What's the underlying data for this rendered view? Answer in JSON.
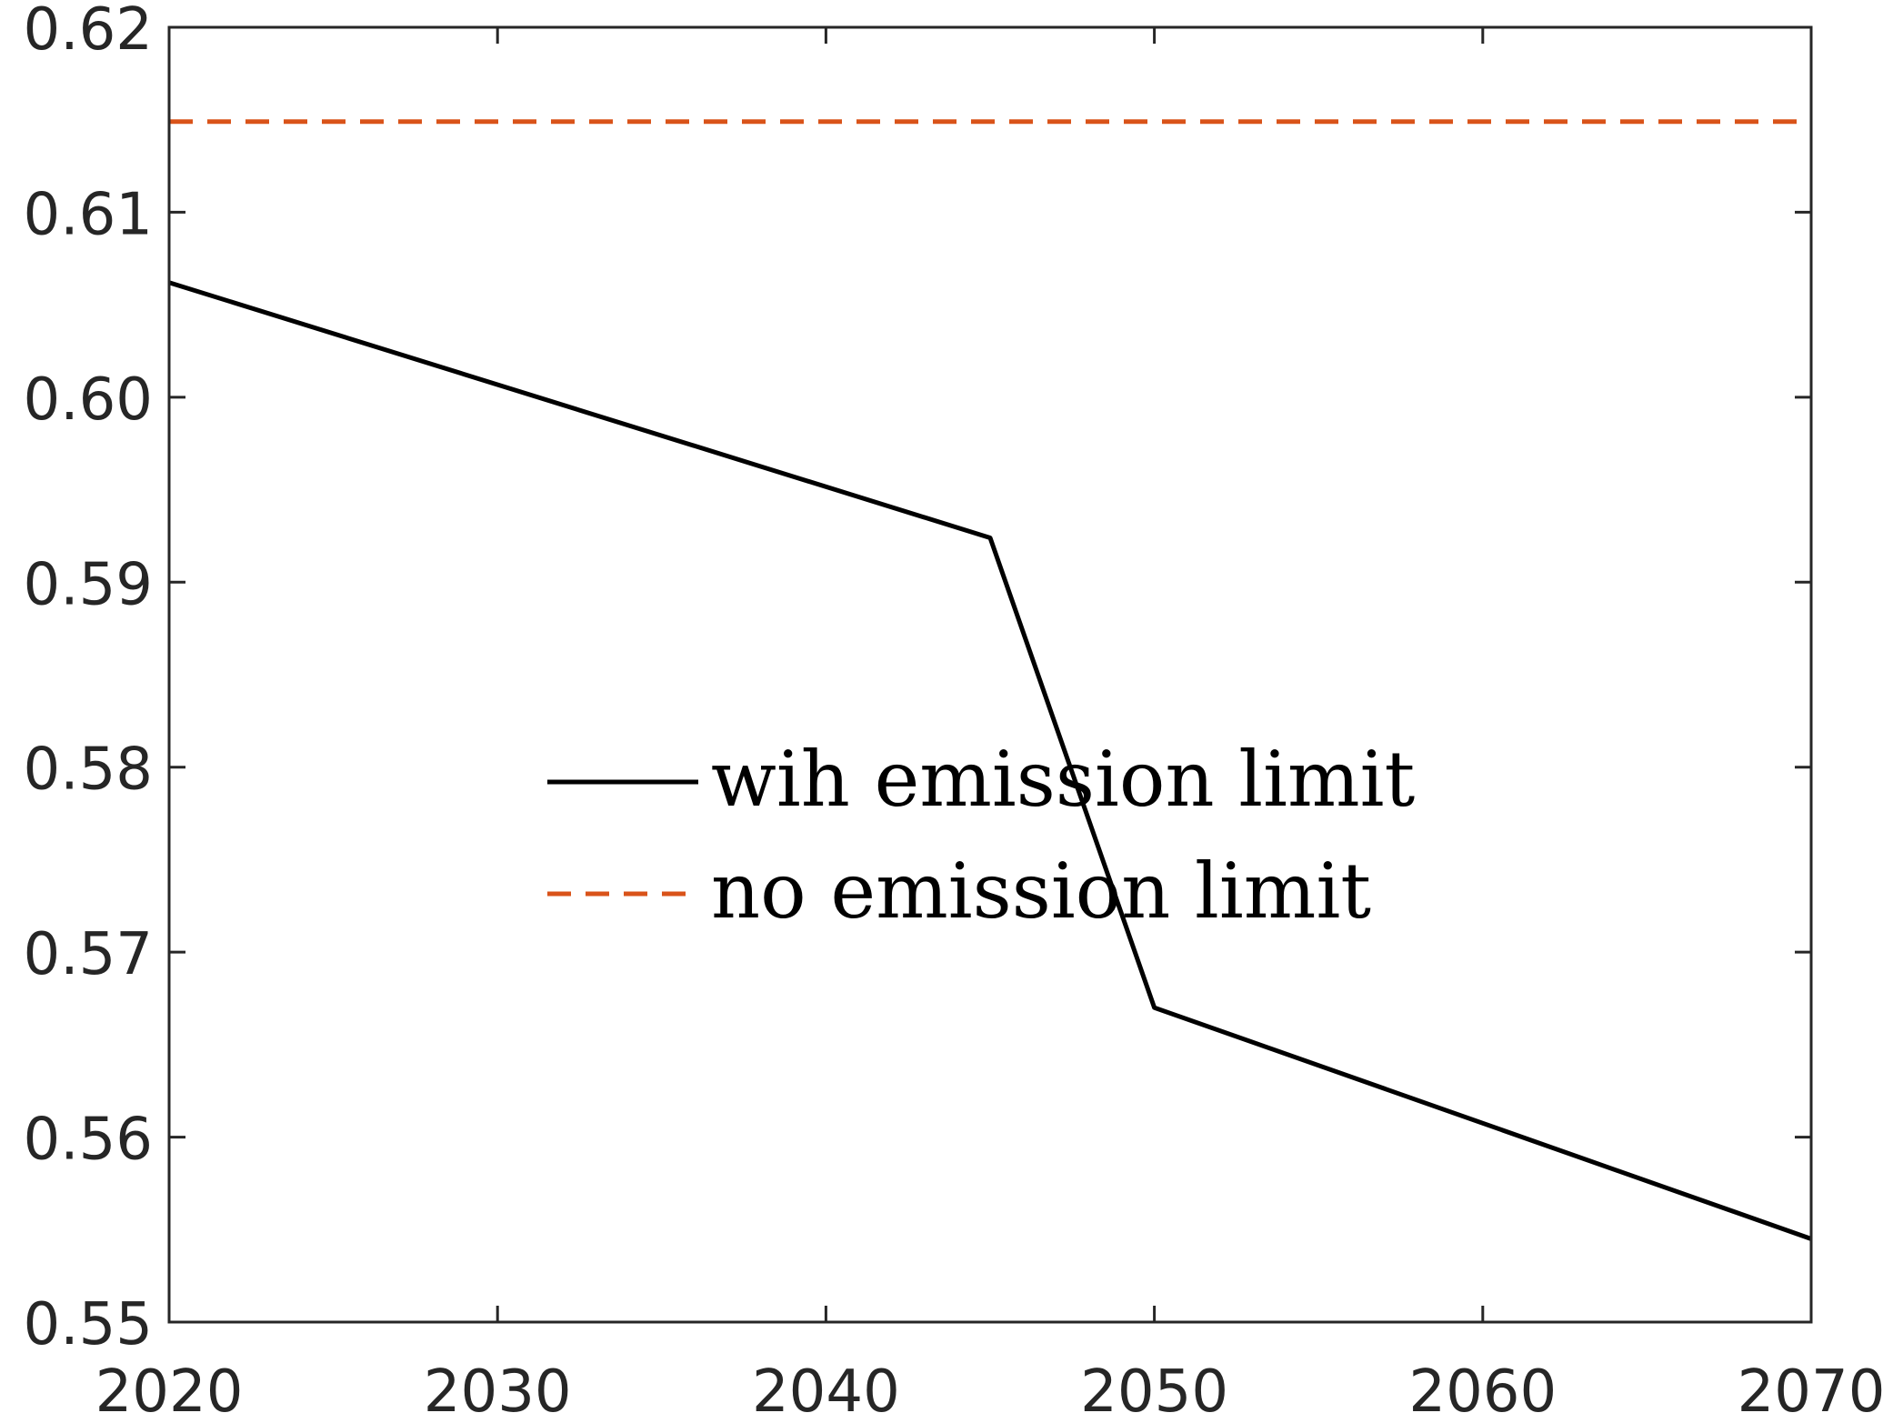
{
  "chart_data": {
    "type": "line",
    "title": "",
    "xlabel": "",
    "ylabel": "",
    "xlim": [
      2020,
      2070
    ],
    "ylim": [
      0.55,
      0.62
    ],
    "x_ticks": [
      "2020",
      "2030",
      "2040",
      "2050",
      "2060",
      "2070"
    ],
    "x_tick_values": [
      2020,
      2030,
      2040,
      2050,
      2060,
      2070
    ],
    "y_ticks": [
      "0.55",
      "0.56",
      "0.57",
      "0.58",
      "0.59",
      "0.60",
      "0.61",
      "0.62"
    ],
    "y_tick_values": [
      0.55,
      0.56,
      0.57,
      0.58,
      0.59,
      0.6,
      0.61,
      0.62
    ],
    "grid": false,
    "legend_position": "center",
    "series": [
      {
        "name": "wih emission limit",
        "color": "#000000",
        "style": "solid",
        "x": [
          2020,
          2045,
          2050,
          2070
        ],
        "y": [
          0.6062,
          0.5924,
          0.567,
          0.5545
        ]
      },
      {
        "name": "no emission limit",
        "color": "#D95319",
        "style": "dashed",
        "x": [
          2020,
          2070
        ],
        "y": [
          0.6149,
          0.6149
        ]
      }
    ]
  }
}
